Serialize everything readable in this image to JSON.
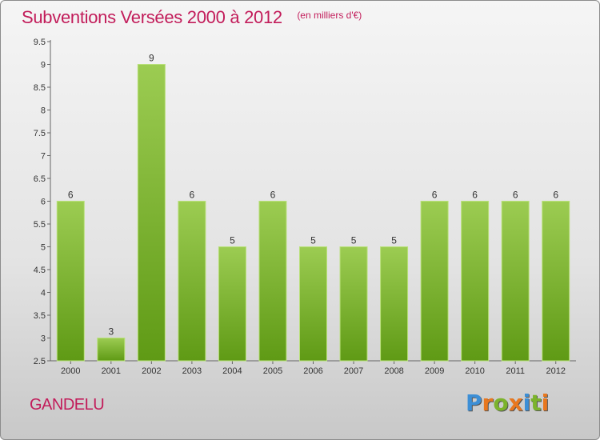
{
  "header": {
    "title": "Subventions Versées 2000 à 2012",
    "subtitle": "(en milliers d'€)"
  },
  "footer": {
    "location": "GANDELU",
    "logo_letters": [
      "P",
      "r",
      "o",
      "x",
      "i",
      "t",
      "i"
    ],
    "logo_colors": [
      "#3d8fd6",
      "#e8771e",
      "#7cb32c",
      "#e8771e",
      "#3d8fd6",
      "#7cb32c",
      "#e8771e"
    ]
  },
  "colors": {
    "bar_light": "#9ccc52",
    "bar_dark": "#5f9a15",
    "axis": "#666666",
    "accent": "#c21c5a"
  },
  "chart_data": {
    "type": "bar",
    "categories": [
      "2000",
      "2001",
      "2002",
      "2003",
      "2004",
      "2005",
      "2006",
      "2007",
      "2008",
      "2009",
      "2010",
      "2011",
      "2012"
    ],
    "values": [
      6,
      3,
      9,
      6,
      5,
      6,
      5,
      5,
      5,
      6,
      6,
      6,
      6
    ],
    "data_labels": [
      "6",
      "3",
      "9",
      "6",
      "5",
      "6",
      "5",
      "5",
      "5",
      "6",
      "6",
      "6",
      "6"
    ],
    "yticks": [
      "2.5",
      "3",
      "3.5",
      "4",
      "4.5",
      "5",
      "5.5",
      "6",
      "6.5",
      "7",
      "7.5",
      "8",
      "8.5",
      "9",
      "9.5"
    ],
    "ylim": [
      2.5,
      9.5
    ],
    "title": "Subventions Versées 2000 à 2012",
    "xlabel": "",
    "ylabel": "",
    "grid": false,
    "legend": "none"
  }
}
